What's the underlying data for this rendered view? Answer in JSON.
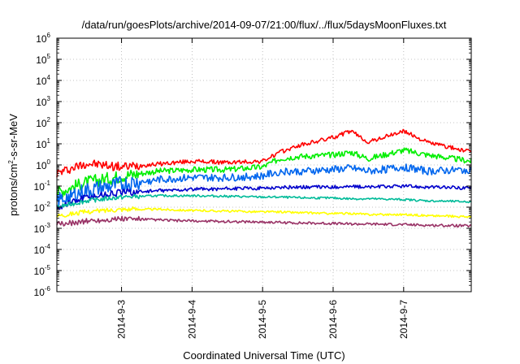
{
  "chart_data": {
    "type": "line",
    "title": "/data/run/goesPlots/archive/2014-09-07/21:00/flux/../flux/5daysMoonFluxes.txt",
    "xlabel": "Coordinated Universal Time (UTC)",
    "ylabel": {
      "prefix": "protons/cm",
      "superscript": "2",
      "suffix": "-s-sr-MeV"
    },
    "ylim_log10": [
      -6,
      6
    ],
    "y_scale": "log",
    "xlim_days": [
      "2014-09-02 ~02:00",
      "2014-09-07 ~23:00"
    ],
    "x_ticks": [
      "2014-9-3",
      "2014-9-4",
      "2014-9-5",
      "2014-9-6",
      "2014-9-7"
    ],
    "y_ticks": [
      {
        "base": "10",
        "exp": "-6"
      },
      {
        "base": "10",
        "exp": "-5"
      },
      {
        "base": "10",
        "exp": "-4"
      },
      {
        "base": "10",
        "exp": "-3"
      },
      {
        "base": "10",
        "exp": "-2"
      },
      {
        "base": "10",
        "exp": "-1"
      },
      {
        "base": "10",
        "exp": "0"
      },
      {
        "base": "10",
        "exp": "1"
      },
      {
        "base": "10",
        "exp": "2"
      },
      {
        "base": "10",
        "exp": "3"
      },
      {
        "base": "10",
        "exp": "4"
      },
      {
        "base": "10",
        "exp": "5"
      },
      {
        "base": "10",
        "exp": "6"
      }
    ],
    "grid": true,
    "legend": "none",
    "series": [
      {
        "color": "#ff0000",
        "x": [
          "09-02 02:00",
          "09-02 12:00",
          "09-03 00:00",
          "09-03 12:00",
          "09-04 00:00",
          "09-04 12:00",
          "09-05 00:00",
          "09-05 06:00",
          "09-05 12:00",
          "09-06 00:00",
          "09-06 06:00",
          "09-06 12:00",
          "09-07 00:00",
          "09-07 08:00",
          "09-07 23:00"
        ],
        "y": [
          0.4,
          1.2,
          0.8,
          1.1,
          1.5,
          1.3,
          1.5,
          4,
          8,
          20,
          40,
          12,
          40,
          12,
          4
        ]
      },
      {
        "color": "#00ee00",
        "x": [
          "09-02 02:00",
          "09-02 12:00",
          "09-03 00:00",
          "09-03 12:00",
          "09-04 00:00",
          "09-04 12:00",
          "09-05 00:00",
          "09-05 06:00",
          "09-05 12:00",
          "09-06 00:00",
          "09-06 06:00",
          "09-06 12:00",
          "09-07 00:00",
          "09-07 08:00",
          "09-07 23:00"
        ],
        "y": [
          0.05,
          0.15,
          0.3,
          0.5,
          0.6,
          0.6,
          0.8,
          2,
          2.5,
          3,
          4,
          2,
          5,
          3,
          1.5
        ]
      },
      {
        "color": "#0066ee",
        "x": [
          "09-02 02:00",
          "09-02 12:00",
          "09-03 00:00",
          "09-03 12:00",
          "09-04 00:00",
          "09-04 12:00",
          "09-05 00:00",
          "09-05 06:00",
          "09-05 12:00",
          "09-06 00:00",
          "09-06 06:00",
          "09-06 12:00",
          "09-07 00:00",
          "09-07 08:00",
          "09-07 23:00"
        ],
        "y": [
          0.02,
          0.06,
          0.12,
          0.2,
          0.25,
          0.25,
          0.3,
          0.5,
          0.5,
          0.6,
          0.7,
          0.5,
          0.8,
          0.5,
          0.6
        ]
      },
      {
        "color": "#0000cc",
        "x": [
          "09-02 02:00",
          "09-02 12:00",
          "09-03 00:00",
          "09-03 12:00",
          "09-04 00:00",
          "09-04 12:00",
          "09-05 00:00",
          "09-05 06:00",
          "09-05 12:00",
          "09-06 00:00",
          "09-06 06:00",
          "09-06 12:00",
          "09-07 00:00",
          "09-07 08:00",
          "09-07 23:00"
        ],
        "y": [
          0.01,
          0.03,
          0.05,
          0.06,
          0.07,
          0.075,
          0.08,
          0.085,
          0.09,
          0.09,
          0.095,
          0.09,
          0.1,
          0.09,
          0.08
        ]
      },
      {
        "color": "#00bb99",
        "x": [
          "09-02 02:00",
          "09-02 12:00",
          "09-03 00:00",
          "09-03 12:00",
          "09-04 00:00",
          "09-04 12:00",
          "09-05 00:00",
          "09-05 06:00",
          "09-05 12:00",
          "09-06 00:00",
          "09-06 06:00",
          "09-06 12:00",
          "09-07 00:00",
          "09-07 08:00",
          "09-07 23:00"
        ],
        "y": [
          0.01,
          0.02,
          0.03,
          0.035,
          0.035,
          0.033,
          0.03,
          0.03,
          0.028,
          0.027,
          0.025,
          0.025,
          0.023,
          0.02,
          0.018
        ]
      },
      {
        "color": "#ffff00",
        "x": [
          "09-02 02:00",
          "09-02 12:00",
          "09-03 00:00",
          "09-03 12:00",
          "09-04 00:00",
          "09-04 12:00",
          "09-05 00:00",
          "09-05 06:00",
          "09-05 12:00",
          "09-06 00:00",
          "09-06 06:00",
          "09-06 12:00",
          "09-07 00:00",
          "09-07 08:00",
          "09-07 23:00"
        ],
        "y": [
          0.004,
          0.006,
          0.008,
          0.008,
          0.007,
          0.0065,
          0.006,
          0.006,
          0.0055,
          0.005,
          0.005,
          0.0045,
          0.0045,
          0.004,
          0.0035
        ]
      },
      {
        "color": "#993366",
        "x": [
          "09-02 02:00",
          "09-02 12:00",
          "09-03 00:00",
          "09-03 12:00",
          "09-04 00:00",
          "09-04 12:00",
          "09-05 00:00",
          "09-05 06:00",
          "09-05 12:00",
          "09-06 00:00",
          "09-06 06:00",
          "09-06 12:00",
          "09-07 00:00",
          "09-07 08:00",
          "09-07 23:00"
        ],
        "y": [
          0.0015,
          0.0022,
          0.0028,
          0.0025,
          0.0022,
          0.0021,
          0.002,
          0.0019,
          0.0018,
          0.0017,
          0.0016,
          0.0016,
          0.0015,
          0.0014,
          0.0013
        ]
      }
    ]
  }
}
